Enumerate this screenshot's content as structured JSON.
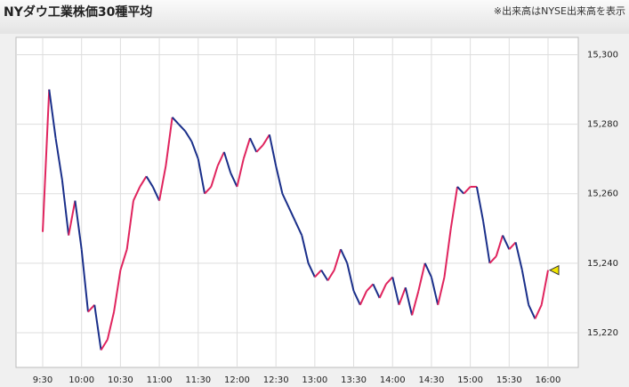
{
  "header": {
    "title": "NYダウ工業株価30種平均",
    "note": "※出来高はNYSE出来高を表示"
  },
  "chart_data": {
    "type": "line",
    "up_color": "#e0245e",
    "down_color": "#1a2f8a",
    "marker_color": "#f2e600",
    "grid": true,
    "categories": [
      "9:30",
      null,
      null,
      null,
      null,
      null,
      "10:00",
      null,
      null,
      null,
      null,
      null,
      "10:30",
      null,
      null,
      null,
      null,
      null,
      "11:00",
      null,
      null,
      null,
      null,
      null,
      "11:30",
      null,
      null,
      null,
      null,
      null,
      "12:00",
      null,
      null,
      null,
      null,
      null,
      "12:30",
      null,
      null,
      null,
      null,
      null,
      "13:00",
      null,
      null,
      null,
      null,
      null,
      "13:30",
      null,
      null,
      null,
      null,
      null,
      "14:00",
      null,
      null,
      null,
      null,
      null,
      "14:30",
      null,
      null,
      null,
      null,
      null,
      "15:00",
      null,
      null,
      null,
      null,
      null,
      "15:30",
      null,
      null,
      null,
      null,
      null,
      "16:00"
    ],
    "values": [
      15249,
      15290,
      15276,
      15264,
      15248,
      15258,
      15244,
      15226,
      15228,
      15215,
      15218,
      15226,
      15238,
      15244,
      15258,
      15262,
      15265,
      15262,
      15258,
      15268,
      15282,
      15280,
      15278,
      15275,
      15270,
      15260,
      15262,
      15268,
      15272,
      15266,
      15262,
      15270,
      15276,
      15272,
      15274,
      15277,
      15268,
      15260,
      15256,
      15252,
      15248,
      15240,
      15236,
      15238,
      15235,
      15238,
      15244,
      15240,
      15232,
      15228,
      15232,
      15234,
      15230,
      15234,
      15236,
      15228,
      15233,
      15225,
      15232,
      15240,
      15236,
      15228,
      15236,
      15250,
      15262,
      15260,
      15262,
      15262,
      15252,
      15240,
      15242,
      15248,
      15244,
      15246,
      15238,
      15228,
      15224,
      15228,
      15238
    ],
    "ylim": [
      15210,
      15305
    ],
    "yticks": [
      {
        "value": 15220,
        "label": "15,220"
      },
      {
        "value": 15240,
        "label": "15,240"
      },
      {
        "value": 15260,
        "label": "15,260"
      },
      {
        "value": 15280,
        "label": "15,280"
      },
      {
        "value": 15300,
        "label": "15,300"
      }
    ]
  }
}
